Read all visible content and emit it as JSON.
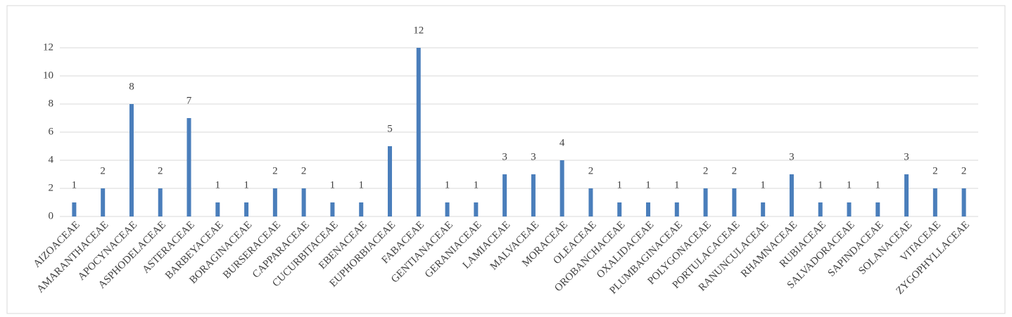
{
  "chart_data": {
    "type": "bar",
    "categories": [
      "AIZOACEAE",
      "AMARANTHACEAE",
      "APOCYNACEAE",
      "ASPHODELACEAE",
      "ASTERACEAE",
      "BARBEYACEAE",
      "BORAGINACEAE",
      "BURSERACEAE",
      "CAPPARACEAE",
      "CUCURBITACEAE",
      "EBENACEAE",
      "EUPHORBIACEAE",
      "FABACEAE",
      "GENTIANACEAE",
      "GERANIACEAE",
      "LAMIACEAE",
      "MALVACEAE",
      "MORACEAE",
      "OLEACEAE",
      "OROBANCHACEAE",
      "OXALIDACEAE",
      "PLUMBAGINACEAE",
      "POLYGONACEAE",
      "PORTULACACEAE",
      "RANUNCULACEAE",
      "RHAMNACEAE",
      "RUBIACEAE",
      "SALVADORACEAE",
      "SAPINDACEAE",
      "SOLANACEAE",
      "VITACEAE",
      "ZYGOPHYLLACEAE"
    ],
    "values": [
      1,
      2,
      8,
      2,
      7,
      1,
      1,
      2,
      2,
      1,
      1,
      5,
      12,
      1,
      1,
      3,
      3,
      4,
      2,
      1,
      1,
      1,
      2,
      2,
      1,
      3,
      1,
      1,
      1,
      3,
      2,
      2
    ],
    "color": "#4a7ebb",
    "ylim": [
      0,
      12
    ],
    "yticks": [
      0,
      2,
      4,
      6,
      8,
      10,
      12
    ],
    "grid": true
  }
}
